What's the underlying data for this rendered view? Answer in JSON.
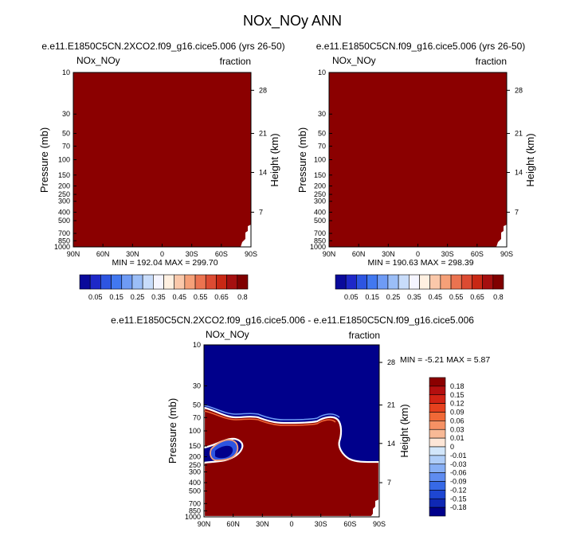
{
  "page_title": "NOx_NOy ANN",
  "colors": {
    "dark_red": "#8b0000",
    "dark_blue": "#00008b",
    "frame": "#000000"
  },
  "chart_data": [
    {
      "type": "heatmap",
      "variable": "NOx_NOy",
      "units": "fraction",
      "title": "e.e11.E1850C5CN.2XCO2.f09_g16.cice5.006 (yrs 26-50)",
      "xlabel": "",
      "ylabel": "Pressure (mb)",
      "ylabel_right": "Height (km)",
      "x_ticks": [
        "90N",
        "60N",
        "30N",
        "0",
        "30S",
        "60S",
        "90S"
      ],
      "y_ticks": [
        "10",
        "30",
        "50",
        "70",
        "100",
        "150",
        "200",
        "250",
        "300",
        "400",
        "500",
        "700",
        "850",
        "1000"
      ],
      "height_ticks": [
        "28",
        "21",
        "14",
        "7"
      ],
      "stats": "MIN = 192.04   MAX = 299.70",
      "min": 192.04,
      "max": 299.7,
      "colorbar": {
        "orientation": "horizontal",
        "labels": [
          "0.05",
          "0.15",
          "0.25",
          "0.35",
          "0.45",
          "0.55",
          "0.65",
          "0.8"
        ],
        "colors": [
          "#0a0a9b",
          "#1e28c8",
          "#2d55e1",
          "#4178f0",
          "#6e9bf5",
          "#9bbef7",
          "#c8dcfa",
          "#f5f5ff",
          "#fff0e1",
          "#fac8aa",
          "#f5a078",
          "#eb7350",
          "#dc4b32",
          "#c82814",
          "#a50f0f",
          "#800000"
        ]
      },
      "field": "uniform dark red (all values above 0.8)"
    },
    {
      "type": "heatmap",
      "variable": "NOx_NOy",
      "units": "fraction",
      "title": "e.e11.E1850C5CN.f09_g16.cice5.006 (yrs 26-50)",
      "xlabel": "",
      "ylabel": "Pressure (mb)",
      "ylabel_right": "Height (km)",
      "x_ticks": [
        "90N",
        "60N",
        "30N",
        "0",
        "30S",
        "60S",
        "90S"
      ],
      "y_ticks": [
        "10",
        "30",
        "50",
        "70",
        "100",
        "150",
        "200",
        "250",
        "300",
        "400",
        "500",
        "700",
        "850",
        "1000"
      ],
      "height_ticks": [
        "28",
        "21",
        "14",
        "7"
      ],
      "stats": "MIN = 190.63   MAX = 298.39",
      "min": 190.63,
      "max": 298.39,
      "colorbar": {
        "orientation": "horizontal",
        "labels": [
          "0.05",
          "0.15",
          "0.25",
          "0.35",
          "0.45",
          "0.55",
          "0.65",
          "0.8"
        ],
        "colors": [
          "#0a0a9b",
          "#1e28c8",
          "#2d55e1",
          "#4178f0",
          "#6e9bf5",
          "#9bbef7",
          "#c8dcfa",
          "#f5f5ff",
          "#fff0e1",
          "#fac8aa",
          "#f5a078",
          "#eb7350",
          "#dc4b32",
          "#c82814",
          "#a50f0f",
          "#800000"
        ]
      },
      "field": "uniform dark red (all values above 0.8)"
    },
    {
      "type": "heatmap",
      "variable": "NOx_NOy",
      "units": "fraction",
      "title": "e.e11.E1850C5CN.2XCO2.f09_g16.cice5.006 - e.e11.E1850C5CN.f09_g16.cice5.006",
      "xlabel": "",
      "ylabel": "Pressure (mb)",
      "ylabel_right": "Height (km)",
      "x_ticks": [
        "90N",
        "60N",
        "30N",
        "0",
        "30S",
        "60S",
        "90S"
      ],
      "y_ticks": [
        "10",
        "30",
        "50",
        "70",
        "100",
        "150",
        "200",
        "250",
        "300",
        "400",
        "500",
        "700",
        "850",
        "1000"
      ],
      "height_ticks": [
        "28",
        "21",
        "14",
        "7"
      ],
      "stats": "MIN = -5.21   MAX =  5.87",
      "min": -5.21,
      "max": 5.87,
      "colorbar": {
        "orientation": "vertical",
        "labels": [
          "0.18",
          "0.15",
          "0.12",
          "0.09",
          "0.06",
          "0.03",
          "0.01",
          "0",
          "-0.01",
          "-0.03",
          "-0.06",
          "-0.09",
          "-0.12",
          "-0.15",
          "-0.18"
        ],
        "colors": [
          "#8b0000",
          "#b40f0f",
          "#d22314",
          "#e6411e",
          "#f06937",
          "#f59164",
          "#f8b996",
          "#fde6d7",
          "#d2e6fa",
          "#afcdf8",
          "#87aff5",
          "#5f8cf0",
          "#3769e6",
          "#1e46d2",
          "#0f28b4",
          "#00008b"
        ]
      },
      "field": "positive (dark red) in the troposphere and Southern Hemisphere lower levels; negative (dark blue) in the upper atmosphere above about 70-100 mb, with a narrow negative tongue near 60N around 200 mb"
    }
  ]
}
